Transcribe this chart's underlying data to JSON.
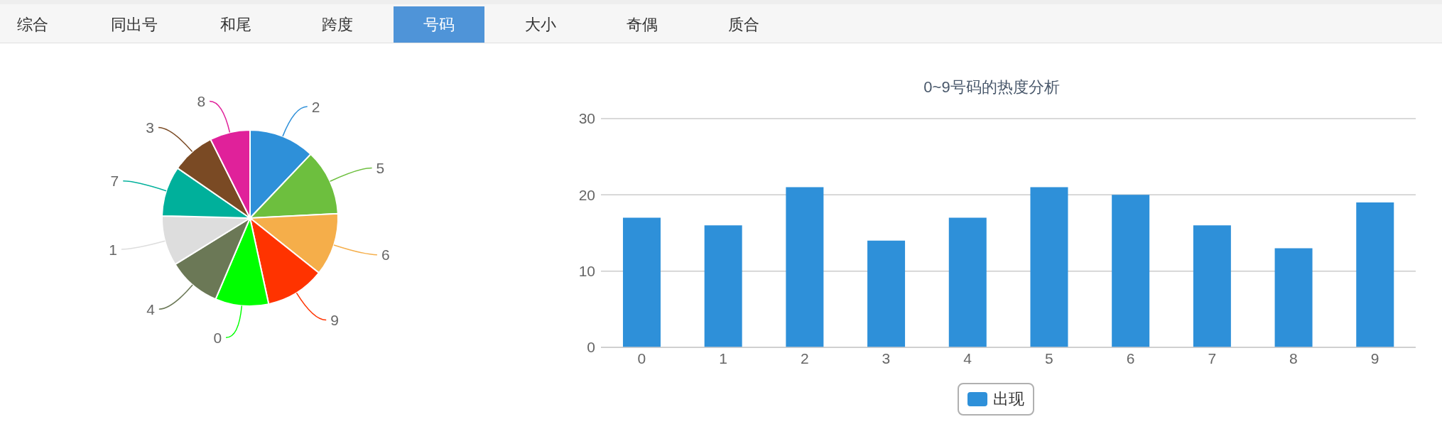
{
  "chart_data": [
    {
      "type": "other",
      "categories": [
        "综合",
        "同出号",
        "和尾",
        "跨度",
        "号码",
        "大小",
        "奇偶",
        "质合"
      ],
      "colors": [
        "#f6f6f6",
        "#f6f6f6",
        "#f6f6f6",
        "#f6f6f6",
        "#4f94d8",
        "#f6f6f6",
        "#f6f6f6",
        "#f6f6f6"
      ]
    },
    {
      "type": "pie",
      "categories": [
        "2",
        "5",
        "6",
        "9",
        "0",
        "4",
        "1",
        "7",
        "3",
        "8"
      ],
      "values": [
        12.1,
        12.1,
        11.5,
        10.9,
        9.8,
        9.8,
        9.2,
        9.2,
        8.0,
        7.4
      ],
      "colors": [
        "#2e90d9",
        "#6dbf3e",
        "#f5ae4a",
        "#ff3300",
        "#00ff00",
        "#6b7856",
        "#dddddd",
        "#00b09b",
        "#7a4a24",
        "#e0219a"
      ]
    },
    {
      "type": "bar",
      "title": "0~9号码的热度分析",
      "categories": [
        "0",
        "1",
        "2",
        "3",
        "4",
        "5",
        "6",
        "7",
        "8",
        "9"
      ],
      "series": [
        {
          "name": "出现",
          "color": "#2e90d9",
          "values": [
            17,
            16,
            21,
            14,
            17,
            21,
            20,
            16,
            13,
            19
          ]
        }
      ],
      "ylim": [
        0,
        30
      ],
      "yticks": [
        0,
        10,
        20,
        30
      ],
      "grid": "y",
      "legend": "bottom"
    }
  ]
}
